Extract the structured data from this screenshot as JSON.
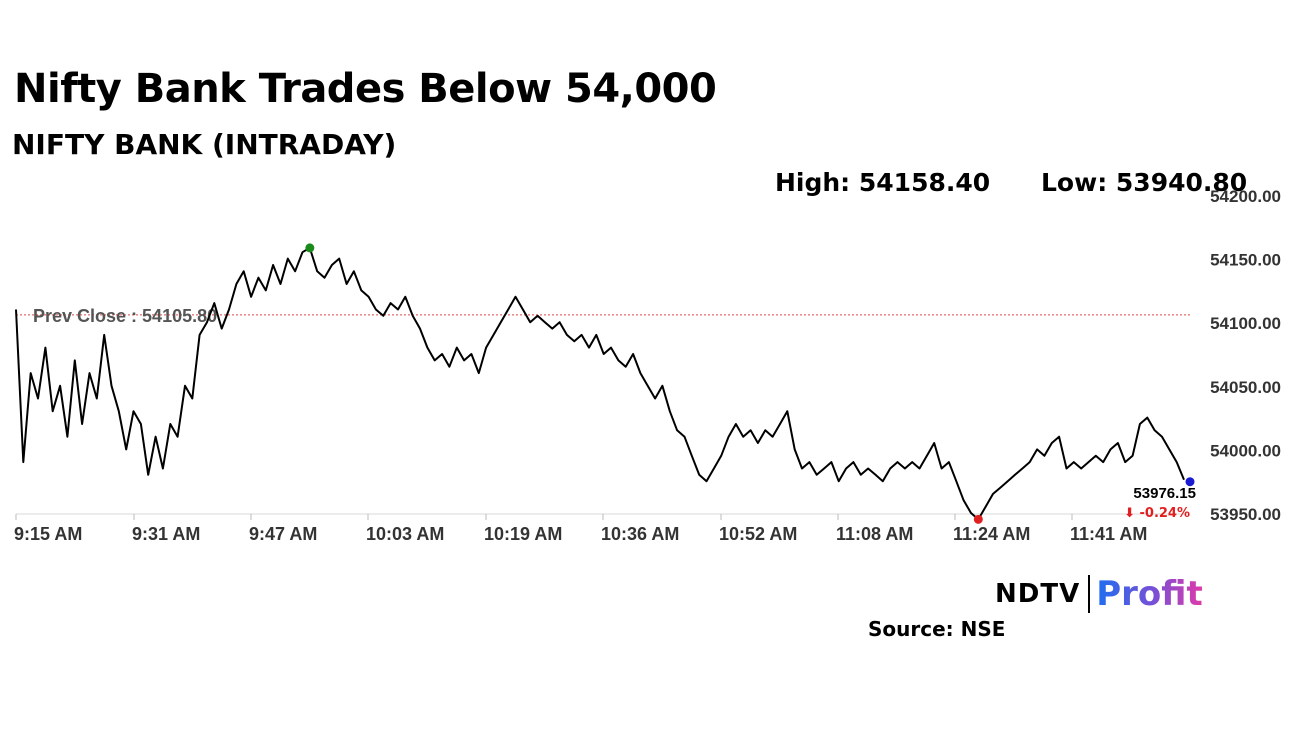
{
  "title": "Nifty Bank Trades Below 54,000",
  "subtitle": "NIFTY BANK (INTRADAY)",
  "high_text": "High: 54158.40",
  "low_text": "Low: 53940.80",
  "source_text": "Source: NSE",
  "logo": {
    "left": "NDTV",
    "right": "Profit"
  },
  "chart_data": {
    "type": "line",
    "title": "NIFTY BANK (INTRADAY)",
    "xlabel": "",
    "ylabel": "",
    "x_tick_labels": [
      "9:15 AM",
      "9:31 AM",
      "9:47 AM",
      "10:03 AM",
      "10:19 AM",
      "10:36 AM",
      "10:52 AM",
      "11:08 AM",
      "11:24 AM",
      "11:41 AM"
    ],
    "y_ticks": [
      53950,
      54000,
      54050,
      54100,
      54150,
      54200
    ],
    "y_tick_labels": [
      "53950.00",
      "54000.00",
      "54050.00",
      "54100.00",
      "54150.00",
      "54200.00"
    ],
    "ylim": [
      53950,
      54200
    ],
    "x_minutes_range": [
      0,
      159
    ],
    "grid": false,
    "prev_close": 54105.8,
    "prev_close_label": "Prev Close : 54105.80",
    "high": 54158.4,
    "low": 53940.8,
    "last_value_label": "53976.15",
    "change_label": "⬇ -0.24%",
    "colors": {
      "line": "#000000",
      "prev_close": "#e04848",
      "high_marker": "#1a8a1a",
      "low_marker": "#e02020",
      "last_marker": "#1a1ad0",
      "change": "#e02020"
    },
    "series": [
      {
        "points": [
          [
            0,
            54110
          ],
          [
            1,
            53990
          ],
          [
            2,
            54060
          ],
          [
            3,
            54040
          ],
          [
            4,
            54080
          ],
          [
            5,
            54030
          ],
          [
            6,
            54050
          ],
          [
            7,
            54010
          ],
          [
            8,
            54070
          ],
          [
            9,
            54020
          ],
          [
            10,
            54060
          ],
          [
            11,
            54040
          ],
          [
            12,
            54090
          ],
          [
            13,
            54050
          ],
          [
            14,
            54030
          ],
          [
            15,
            54000
          ],
          [
            16,
            54030
          ],
          [
            17,
            54020
          ],
          [
            18,
            53980
          ],
          [
            19,
            54010
          ],
          [
            20,
            53985
          ],
          [
            21,
            54020
          ],
          [
            22,
            54010
          ],
          [
            23,
            54050
          ],
          [
            24,
            54040
          ],
          [
            25,
            54090
          ],
          [
            26,
            54100
          ],
          [
            27,
            54115
          ],
          [
            28,
            54095
          ],
          [
            29,
            54110
          ],
          [
            30,
            54130
          ],
          [
            31,
            54140
          ],
          [
            32,
            54120
          ],
          [
            33,
            54135
          ],
          [
            34,
            54125
          ],
          [
            35,
            54145
          ],
          [
            36,
            54130
          ],
          [
            37,
            54150
          ],
          [
            38,
            54140
          ],
          [
            39,
            54155
          ],
          [
            40,
            54158.4
          ],
          [
            41,
            54140
          ],
          [
            42,
            54135
          ],
          [
            43,
            54145
          ],
          [
            44,
            54150
          ],
          [
            45,
            54130
          ],
          [
            46,
            54140
          ],
          [
            47,
            54125
          ],
          [
            48,
            54120
          ],
          [
            49,
            54110
          ],
          [
            50,
            54105
          ],
          [
            51,
            54115
          ],
          [
            52,
            54110
          ],
          [
            53,
            54120
          ],
          [
            54,
            54105
          ],
          [
            55,
            54095
          ],
          [
            56,
            54080
          ],
          [
            57,
            54070
          ],
          [
            58,
            54075
          ],
          [
            59,
            54065
          ],
          [
            60,
            54080
          ],
          [
            61,
            54070
          ],
          [
            62,
            54075
          ],
          [
            63,
            54060
          ],
          [
            64,
            54080
          ],
          [
            65,
            54090
          ],
          [
            66,
            54100
          ],
          [
            67,
            54110
          ],
          [
            68,
            54120
          ],
          [
            69,
            54110
          ],
          [
            70,
            54100
          ],
          [
            71,
            54105
          ],
          [
            72,
            54100
          ],
          [
            73,
            54095
          ],
          [
            74,
            54100
          ],
          [
            75,
            54090
          ],
          [
            76,
            54085
          ],
          [
            77,
            54090
          ],
          [
            78,
            54080
          ],
          [
            79,
            54090
          ],
          [
            80,
            54075
          ],
          [
            81,
            54080
          ],
          [
            82,
            54070
          ],
          [
            83,
            54065
          ],
          [
            84,
            54075
          ],
          [
            85,
            54060
          ],
          [
            86,
            54050
          ],
          [
            87,
            54040
          ],
          [
            88,
            54050
          ],
          [
            89,
            54030
          ],
          [
            90,
            54015
          ],
          [
            91,
            54010
          ],
          [
            92,
            53995
          ],
          [
            93,
            53980
          ],
          [
            94,
            53975
          ],
          [
            95,
            53985
          ],
          [
            96,
            53995
          ],
          [
            97,
            54010
          ],
          [
            98,
            54020
          ],
          [
            99,
            54010
          ],
          [
            100,
            54015
          ],
          [
            101,
            54005
          ],
          [
            102,
            54015
          ],
          [
            103,
            54010
          ],
          [
            104,
            54020
          ],
          [
            105,
            54030
          ],
          [
            106,
            54000
          ],
          [
            107,
            53985
          ],
          [
            108,
            53990
          ],
          [
            109,
            53980
          ],
          [
            110,
            53985
          ],
          [
            111,
            53990
          ],
          [
            112,
            53975
          ],
          [
            113,
            53985
          ],
          [
            114,
            53990
          ],
          [
            115,
            53980
          ],
          [
            116,
            53985
          ],
          [
            117,
            53980
          ],
          [
            118,
            53975
          ],
          [
            119,
            53985
          ],
          [
            120,
            53990
          ],
          [
            121,
            53985
          ],
          [
            122,
            53990
          ],
          [
            123,
            53985
          ],
          [
            124,
            53995
          ],
          [
            125,
            54005
          ],
          [
            126,
            53985
          ],
          [
            127,
            53990
          ],
          [
            128,
            53975
          ],
          [
            129,
            53960
          ],
          [
            130,
            53950
          ],
          [
            131,
            53945
          ],
          [
            132,
            53955
          ],
          [
            133,
            53965
          ],
          [
            134,
            53970
          ],
          [
            135,
            53975
          ],
          [
            136,
            53980
          ],
          [
            137,
            53985
          ],
          [
            138,
            53990
          ],
          [
            139,
            54000
          ],
          [
            140,
            53995
          ],
          [
            141,
            54005
          ],
          [
            142,
            54010
          ],
          [
            143,
            53985
          ],
          [
            144,
            53990
          ],
          [
            145,
            53985
          ],
          [
            146,
            53990
          ],
          [
            147,
            53995
          ],
          [
            148,
            53990
          ],
          [
            149,
            54000
          ],
          [
            150,
            54005
          ],
          [
            151,
            53990
          ],
          [
            152,
            53995
          ],
          [
            153,
            54020
          ],
          [
            154,
            54025
          ],
          [
            155,
            54015
          ],
          [
            156,
            54010
          ],
          [
            157,
            54000
          ],
          [
            158,
            53990
          ],
          [
            159,
            53976.15
          ]
        ]
      }
    ]
  }
}
